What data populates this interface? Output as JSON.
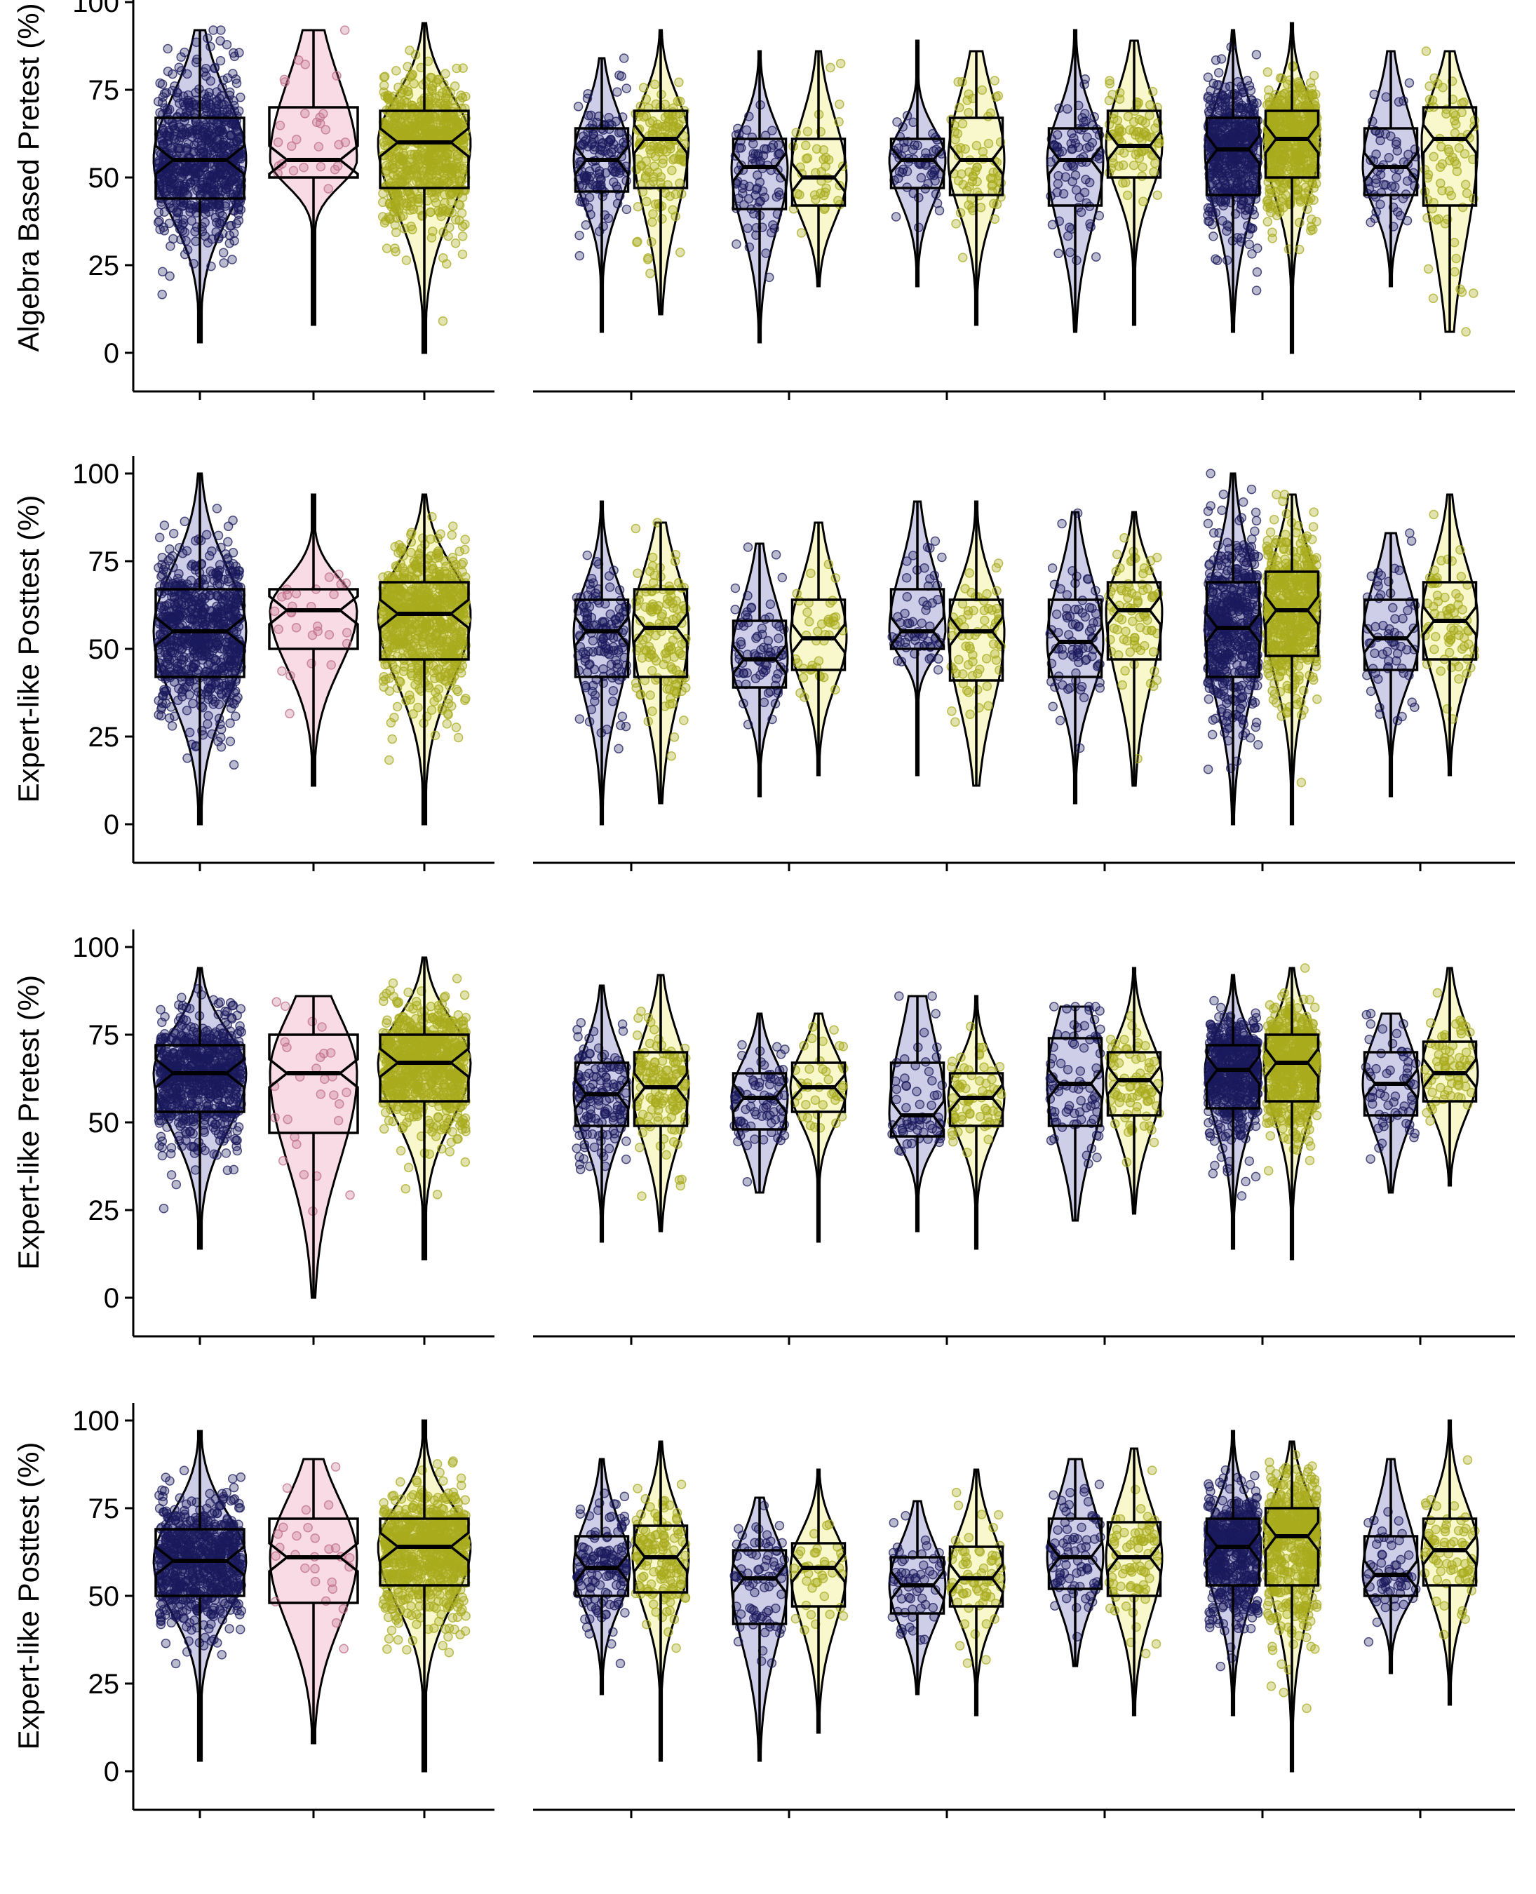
{
  "chart_data": {
    "type": "violin",
    "y_range": [
      0,
      100
    ],
    "y_ticks": [
      0,
      25,
      50,
      75,
      100
    ],
    "grid": false,
    "legend": "none",
    "colors": {
      "navy_fill": "#c9c9e6",
      "navy_point": "#1a1a5e",
      "pink_fill": "#f7d7e1",
      "pink_point": "#c06d8a",
      "yellow_fill": "#f7f7c6",
      "yellow_point": "#a8ab1e"
    },
    "panels": [
      {
        "ylabel": "Algebra Based Pretest (%)",
        "left": [
          {
            "color": "navy",
            "n": 900,
            "min": 3,
            "q1": 44,
            "median": 55,
            "q3": 67,
            "max": 92
          },
          {
            "color": "pink",
            "n": 28,
            "min": 8,
            "q1": 50,
            "median": 55,
            "q3": 70,
            "max": 92
          },
          {
            "color": "yellow",
            "n": 750,
            "min": 0,
            "q1": 47,
            "median": 60,
            "q3": 69,
            "max": 94
          }
        ],
        "right": [
          [
            {
              "color": "navy",
              "n": 140,
              "min": 6,
              "q1": 46,
              "median": 55,
              "q3": 64,
              "max": 84
            },
            {
              "color": "yellow",
              "n": 140,
              "min": 11,
              "q1": 47,
              "median": 61,
              "q3": 69,
              "max": 92
            }
          ],
          [
            {
              "color": "navy",
              "n": 80,
              "min": 3,
              "q1": 41,
              "median": 53,
              "q3": 61,
              "max": 86
            },
            {
              "color": "yellow",
              "n": 40,
              "min": 19,
              "q1": 42,
              "median": 50,
              "q3": 61,
              "max": 86
            }
          ],
          [
            {
              "color": "navy",
              "n": 60,
              "min": 19,
              "q1": 47,
              "median": 55,
              "q3": 61,
              "max": 89
            },
            {
              "color": "yellow",
              "n": 70,
              "min": 8,
              "q1": 45,
              "median": 55,
              "q3": 67,
              "max": 86
            }
          ],
          [
            {
              "color": "navy",
              "n": 80,
              "min": 6,
              "q1": 42,
              "median": 55,
              "q3": 64,
              "max": 92
            },
            {
              "color": "yellow",
              "n": 80,
              "min": 8,
              "q1": 50,
              "median": 59,
              "q3": 69,
              "max": 89
            }
          ],
          [
            {
              "color": "navy",
              "n": 500,
              "min": 6,
              "q1": 45,
              "median": 58,
              "q3": 67,
              "max": 92
            },
            {
              "color": "yellow",
              "n": 500,
              "min": 0,
              "q1": 50,
              "median": 61,
              "q3": 69,
              "max": 94
            }
          ],
          [
            {
              "color": "navy",
              "n": 60,
              "min": 19,
              "q1": 45,
              "median": 53,
              "q3": 64,
              "max": 86
            },
            {
              "color": "yellow",
              "n": 70,
              "min": 6,
              "q1": 42,
              "median": 61,
              "q3": 70,
              "max": 86
            }
          ]
        ]
      },
      {
        "ylabel": "Expert-like Posttest (%)",
        "left": [
          {
            "color": "navy",
            "n": 900,
            "min": 0,
            "q1": 42,
            "median": 55,
            "q3": 67,
            "max": 100
          },
          {
            "color": "pink",
            "n": 28,
            "min": 11,
            "q1": 50,
            "median": 61,
            "q3": 67,
            "max": 94
          },
          {
            "color": "yellow",
            "n": 750,
            "min": 0,
            "q1": 47,
            "median": 60,
            "q3": 69,
            "max": 94
          }
        ],
        "right": [
          [
            {
              "color": "navy",
              "n": 140,
              "min": 0,
              "q1": 42,
              "median": 55,
              "q3": 64,
              "max": 92
            },
            {
              "color": "yellow",
              "n": 140,
              "min": 6,
              "q1": 42,
              "median": 56,
              "q3": 67,
              "max": 86
            }
          ],
          [
            {
              "color": "navy",
              "n": 80,
              "min": 8,
              "q1": 39,
              "median": 47,
              "q3": 58,
              "max": 80
            },
            {
              "color": "yellow",
              "n": 40,
              "min": 14,
              "q1": 44,
              "median": 53,
              "q3": 64,
              "max": 86
            }
          ],
          [
            {
              "color": "navy",
              "n": 60,
              "min": 14,
              "q1": 50,
              "median": 55,
              "q3": 67,
              "max": 92
            },
            {
              "color": "yellow",
              "n": 70,
              "min": 11,
              "q1": 41,
              "median": 55,
              "q3": 64,
              "max": 92
            }
          ],
          [
            {
              "color": "navy",
              "n": 80,
              "min": 6,
              "q1": 42,
              "median": 52,
              "q3": 64,
              "max": 89
            },
            {
              "color": "yellow",
              "n": 80,
              "min": 11,
              "q1": 47,
              "median": 61,
              "q3": 69,
              "max": 89
            }
          ],
          [
            {
              "color": "navy",
              "n": 500,
              "min": 0,
              "q1": 42,
              "median": 56,
              "q3": 69,
              "max": 100
            },
            {
              "color": "yellow",
              "n": 500,
              "min": 0,
              "q1": 48,
              "median": 61,
              "q3": 72,
              "max": 94
            }
          ],
          [
            {
              "color": "navy",
              "n": 60,
              "min": 8,
              "q1": 44,
              "median": 53,
              "q3": 64,
              "max": 83
            },
            {
              "color": "yellow",
              "n": 70,
              "min": 14,
              "q1": 47,
              "median": 58,
              "q3": 69,
              "max": 94
            }
          ]
        ]
      },
      {
        "ylabel": "Expert-like Pretest (%)",
        "left": [
          {
            "color": "navy",
            "n": 900,
            "min": 14,
            "q1": 53,
            "median": 64,
            "q3": 72,
            "max": 94
          },
          {
            "color": "pink",
            "n": 28,
            "min": 0,
            "q1": 47,
            "median": 64,
            "q3": 75,
            "max": 86
          },
          {
            "color": "yellow",
            "n": 750,
            "min": 11,
            "q1": 56,
            "median": 67,
            "q3": 75,
            "max": 97
          }
        ],
        "right": [
          [
            {
              "color": "navy",
              "n": 140,
              "min": 16,
              "q1": 49,
              "median": 58,
              "q3": 67,
              "max": 89
            },
            {
              "color": "yellow",
              "n": 140,
              "min": 19,
              "q1": 49,
              "median": 60,
              "q3": 70,
              "max": 92
            }
          ],
          [
            {
              "color": "navy",
              "n": 80,
              "min": 30,
              "q1": 48,
              "median": 57,
              "q3": 64,
              "max": 81
            },
            {
              "color": "yellow",
              "n": 40,
              "min": 16,
              "q1": 53,
              "median": 60,
              "q3": 67,
              "max": 81
            }
          ],
          [
            {
              "color": "navy",
              "n": 60,
              "min": 19,
              "q1": 46,
              "median": 52,
              "q3": 67,
              "max": 86
            },
            {
              "color": "yellow",
              "n": 70,
              "min": 14,
              "q1": 49,
              "median": 57,
              "q3": 64,
              "max": 86
            }
          ],
          [
            {
              "color": "navy",
              "n": 80,
              "min": 22,
              "q1": 49,
              "median": 61,
              "q3": 74,
              "max": 83
            },
            {
              "color": "yellow",
              "n": 80,
              "min": 24,
              "q1": 52,
              "median": 62,
              "q3": 70,
              "max": 94
            }
          ],
          [
            {
              "color": "navy",
              "n": 500,
              "min": 14,
              "q1": 54,
              "median": 65,
              "q3": 72,
              "max": 92
            },
            {
              "color": "yellow",
              "n": 500,
              "min": 11,
              "q1": 56,
              "median": 67,
              "q3": 75,
              "max": 94
            }
          ],
          [
            {
              "color": "navy",
              "n": 60,
              "min": 30,
              "q1": 52,
              "median": 61,
              "q3": 70,
              "max": 81
            },
            {
              "color": "yellow",
              "n": 70,
              "min": 32,
              "q1": 56,
              "median": 64,
              "q3": 73,
              "max": 94
            }
          ]
        ]
      },
      {
        "ylabel": "Expert-like Posttest (%)",
        "left": [
          {
            "color": "navy",
            "n": 900,
            "min": 3,
            "q1": 50,
            "median": 60,
            "q3": 69,
            "max": 97
          },
          {
            "color": "pink",
            "n": 28,
            "min": 8,
            "q1": 48,
            "median": 61,
            "q3": 72,
            "max": 89
          },
          {
            "color": "yellow",
            "n": 750,
            "min": 0,
            "q1": 53,
            "median": 64,
            "q3": 72,
            "max": 100
          }
        ],
        "right": [
          [
            {
              "color": "navy",
              "n": 140,
              "min": 22,
              "q1": 50,
              "median": 58,
              "q3": 67,
              "max": 89
            },
            {
              "color": "yellow",
              "n": 140,
              "min": 3,
              "q1": 51,
              "median": 61,
              "q3": 70,
              "max": 94
            }
          ],
          [
            {
              "color": "navy",
              "n": 80,
              "min": 3,
              "q1": 42,
              "median": 55,
              "q3": 63,
              "max": 78
            },
            {
              "color": "yellow",
              "n": 40,
              "min": 11,
              "q1": 47,
              "median": 58,
              "q3": 65,
              "max": 86
            }
          ],
          [
            {
              "color": "navy",
              "n": 60,
              "min": 22,
              "q1": 45,
              "median": 53,
              "q3": 61,
              "max": 77
            },
            {
              "color": "yellow",
              "n": 70,
              "min": 16,
              "q1": 47,
              "median": 55,
              "q3": 64,
              "max": 86
            }
          ],
          [
            {
              "color": "navy",
              "n": 80,
              "min": 30,
              "q1": 52,
              "median": 61,
              "q3": 72,
              "max": 89
            },
            {
              "color": "yellow",
              "n": 80,
              "min": 16,
              "q1": 50,
              "median": 61,
              "q3": 71,
              "max": 92
            }
          ],
          [
            {
              "color": "navy",
              "n": 500,
              "min": 16,
              "q1": 53,
              "median": 64,
              "q3": 72,
              "max": 97
            },
            {
              "color": "yellow",
              "n": 500,
              "min": 0,
              "q1": 53,
              "median": 67,
              "q3": 75,
              "max": 94
            }
          ],
          [
            {
              "color": "navy",
              "n": 60,
              "min": 28,
              "q1": 50,
              "median": 56,
              "q3": 67,
              "max": 89
            },
            {
              "color": "yellow",
              "n": 70,
              "min": 19,
              "q1": 53,
              "median": 63,
              "q3": 72,
              "max": 100
            }
          ]
        ]
      }
    ]
  }
}
